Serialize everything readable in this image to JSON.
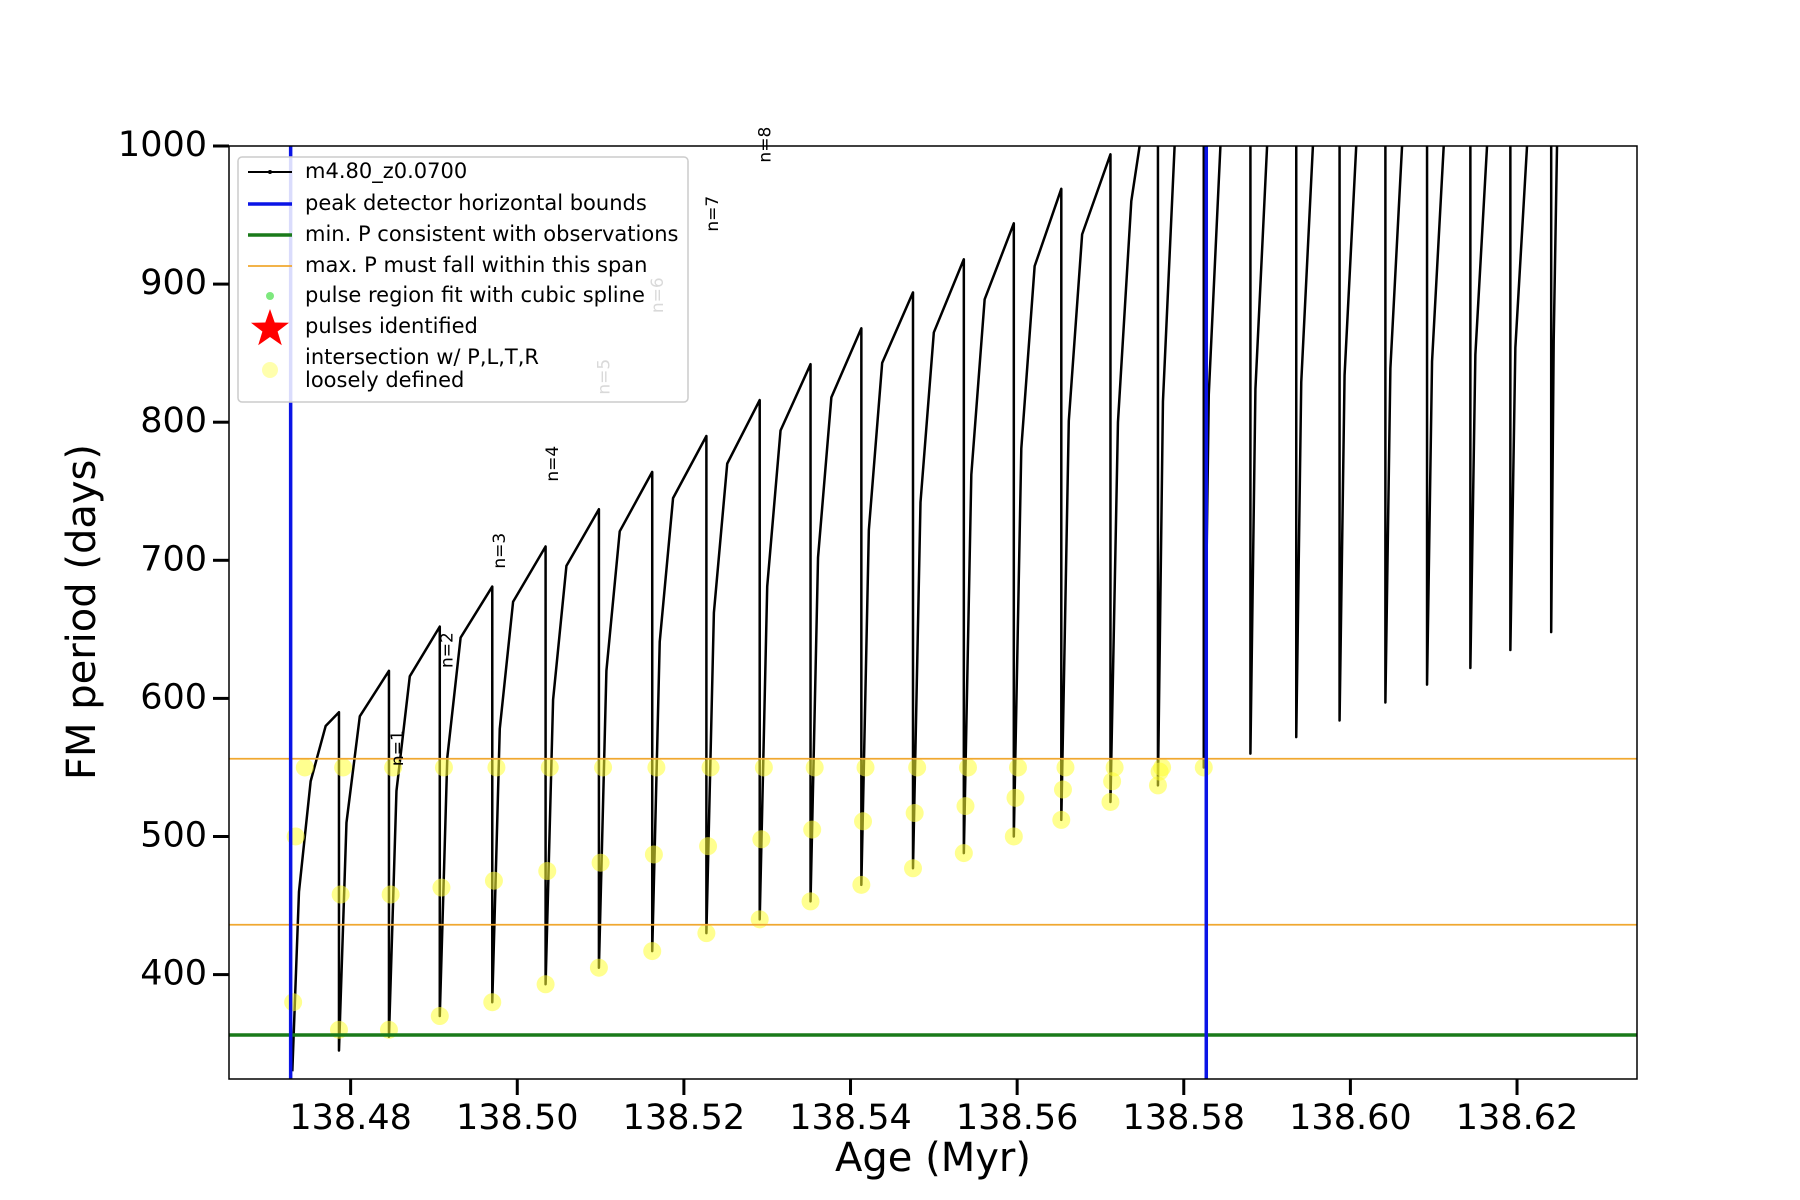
{
  "chart_data": {
    "type": "line",
    "xlabel": "Age (Myr)",
    "ylabel": "FM period (days)",
    "xlim": [
      138.4654,
      138.6344
    ],
    "ylim": [
      324.4,
      1000
    ],
    "xticks": [
      138.48,
      {
        "value": 138.5,
        "label": "138.50"
      },
      138.52,
      138.54,
      138.56,
      138.58,
      {
        "value": 138.6,
        "label": "138.60"
      },
      138.62
    ],
    "yticks": [
      400,
      500,
      600,
      700,
      800,
      900,
      1000
    ],
    "legend": "upper left",
    "series": [
      {
        "name": "m4.80_z0.0700",
        "type": "line",
        "color": "#000000",
        "x": [
          138.473,
          138.4738,
          138.4752,
          138.477,
          138.4786,
          138.4786,
          138.4795,
          138.4811,
          138.4846,
          138.4846,
          138.4855,
          138.4871,
          138.4907,
          138.4907,
          138.4916,
          138.4932,
          138.497,
          138.497,
          138.4979,
          138.4995,
          138.5034,
          138.5034,
          138.5043,
          138.5059,
          138.5098,
          138.5098,
          138.5107,
          138.5123,
          138.5162,
          138.5162,
          138.5171,
          138.5187,
          138.5227,
          138.5227,
          138.5236,
          138.5252,
          138.5291,
          138.5291,
          138.53,
          138.5316,
          138.5352,
          138.5352,
          138.5361,
          138.5377,
          138.5413,
          138.5413,
          138.5422,
          138.5438,
          138.5475,
          138.5475,
          138.5484,
          138.55,
          138.5536,
          138.5536,
          138.5545,
          138.5561,
          138.5596,
          138.5596,
          138.5605,
          138.5621,
          138.5653,
          138.5653,
          138.5662,
          138.5678,
          138.5712,
          138.5712,
          138.5721,
          138.5737,
          138.5747,
          null,
          138.5769,
          138.5769,
          138.5775,
          138.5789,
          null,
          138.5824,
          138.5824,
          138.583,
          138.5844,
          null,
          138.588,
          138.588,
          138.5886,
          138.59,
          null,
          138.5935,
          138.5935,
          138.5941,
          138.5955,
          null,
          138.5987,
          138.5987,
          138.5993,
          138.6007,
          null,
          138.6042,
          138.6042,
          138.6048,
          138.6062,
          null,
          138.6092,
          138.6092,
          138.6098,
          138.6112,
          null,
          138.6144,
          138.6144,
          138.615,
          138.6164,
          null,
          138.6192,
          138.6192,
          138.6198,
          138.6212,
          null,
          138.6241,
          138.6241,
          138.6244,
          138.6248
        ],
        "values": [
          330,
          460,
          540,
          580,
          590,
          345,
          510,
          587,
          620,
          355,
          533,
          616,
          652,
          370,
          557,
          644,
          681,
          380,
          578,
          670,
          710,
          393,
          599,
          696,
          737,
          405,
          620,
          721,
          764,
          417,
          641,
          745,
          790,
          430,
          662,
          770,
          816,
          440,
          681,
          794,
          842,
          453,
          702,
          818,
          868,
          465,
          722,
          843,
          894,
          477,
          742,
          865,
          918,
          488,
          762,
          889,
          944,
          500,
          781,
          913,
          969,
          512,
          801,
          936,
          994,
          525,
          800,
          960,
          1000,
          null,
          1000,
          537,
          815,
          1000,
          null,
          1000,
          550,
          820,
          1000,
          null,
          1000,
          560,
          824,
          1000,
          null,
          1000,
          572,
          829,
          1000,
          null,
          1000,
          584,
          834,
          1000,
          null,
          1000,
          597,
          839,
          1000,
          null,
          1000,
          610,
          844,
          1000,
          null,
          1000,
          622,
          849,
          1000,
          null,
          1000,
          635,
          854,
          1000,
          null,
          1000,
          648,
          859,
          1000
        ]
      },
      {
        "name": "peak detector horizontal bounds",
        "type": "vline",
        "color": "#0a14e6",
        "xintercepts": [
          138.4728,
          138.5827
        ]
      },
      {
        "name": "min. P consistent with observations",
        "type": "hline",
        "color": "#1a7a1a",
        "yintercepts": [
          356.3
        ]
      },
      {
        "name": "max. P must fall within this span",
        "type": "hline",
        "color": "#f0a830",
        "yintercepts": [
          436.1,
          556.3
        ]
      },
      {
        "name": "pulse region fit with cubic spline",
        "type": "scatter",
        "marker": "dot",
        "color": "#7ee87e"
      },
      {
        "name": "pulses identified",
        "type": "scatter",
        "marker": "star",
        "color": "#ff0000"
      },
      {
        "name": [
          "intersection w/ P,L,T,R",
          "loosely defined"
        ],
        "type": "scatter",
        "marker": "circle",
        "color": "#ffff33",
        "x": [
          138.4731,
          138.4734,
          138.4745,
          138.4786,
          138.4788,
          138.4791,
          138.4846,
          138.4848,
          138.4851,
          138.4907,
          138.4909,
          138.4912,
          138.497,
          138.4972,
          138.4975,
          138.5034,
          138.5036,
          138.5039,
          138.5098,
          138.51,
          138.5103,
          138.5162,
          138.5164,
          138.5167,
          138.5227,
          138.5229,
          138.5232,
          138.5291,
          138.5293,
          138.5296,
          138.5352,
          138.5354,
          138.5357,
          138.5413,
          138.5415,
          138.5418,
          138.5475,
          138.5477,
          138.548,
          138.5536,
          138.5538,
          138.5541,
          138.5596,
          138.5598,
          138.5601,
          138.5653,
          138.5655,
          138.5658,
          138.5712,
          138.5714,
          138.5717,
          138.5769,
          138.5771,
          138.5774,
          138.5824
        ],
        "values": [
          380,
          500,
          550,
          360,
          458,
          550,
          360,
          458,
          550,
          370,
          463,
          550,
          380,
          468,
          550,
          393,
          475,
          550,
          405,
          481,
          550,
          417,
          487,
          550,
          430,
          493,
          550,
          440,
          498,
          550,
          453,
          505,
          550,
          465,
          511,
          550,
          477,
          517,
          550,
          488,
          522,
          550,
          500,
          528,
          550,
          512,
          534,
          550,
          525,
          540,
          550,
          537,
          547,
          550,
          550
        ]
      }
    ],
    "annotations": [
      {
        "text": "n=1",
        "x": 138.4857,
        "y": 551,
        "color": "#000000"
      },
      {
        "text": "n=2",
        "x": 138.4916,
        "y": 622,
        "color": "#000000"
      },
      {
        "text": "n=3",
        "x": 138.4979,
        "y": 694,
        "color": "#000000"
      },
      {
        "text": "n=4",
        "x": 138.5043,
        "y": 757,
        "color": "#000000"
      },
      {
        "text": "n=5",
        "x": 138.5105,
        "y": 820,
        "color": "#aaaaaa"
      },
      {
        "text": "n=6",
        "x": 138.5169,
        "y": 879,
        "color": "#aaaaaa"
      },
      {
        "text": "n=7",
        "x": 138.5235,
        "y": 938,
        "color": "#000000"
      },
      {
        "text": "n=8",
        "x": 138.5298,
        "y": 988,
        "color": "#000000"
      }
    ]
  }
}
